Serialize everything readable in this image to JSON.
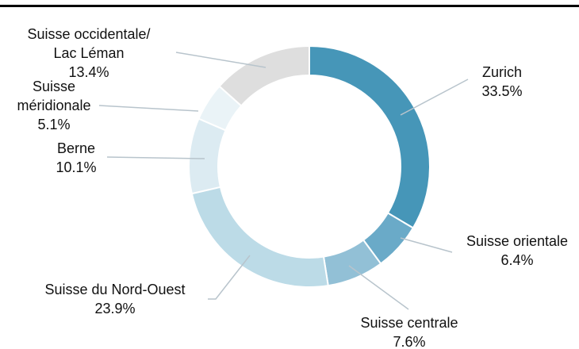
{
  "chart_data": {
    "type": "donut",
    "categories": [
      [
        "Zurich"
      ],
      [
        "Suisse orientale"
      ],
      [
        "Suisse centrale"
      ],
      [
        "Suisse du Nord-Ouest"
      ],
      [
        "Berne"
      ],
      [
        "Suisse",
        "méridionale"
      ],
      [
        "Suisse occidentale/",
        "Lac Léman"
      ]
    ],
    "values": [
      33.5,
      6.4,
      7.6,
      23.9,
      10.1,
      5.1,
      13.4
    ],
    "value_labels": [
      "33.5%",
      "6.4%",
      "7.6%",
      "23.9%",
      "10.1%",
      "5.1%",
      "13.4%"
    ],
    "colors": [
      "#4696b8",
      "#6aaac8",
      "#92c0d6",
      "#bcdbe7",
      "#dcebf2",
      "#eaf3f7",
      "#dedede"
    ]
  }
}
